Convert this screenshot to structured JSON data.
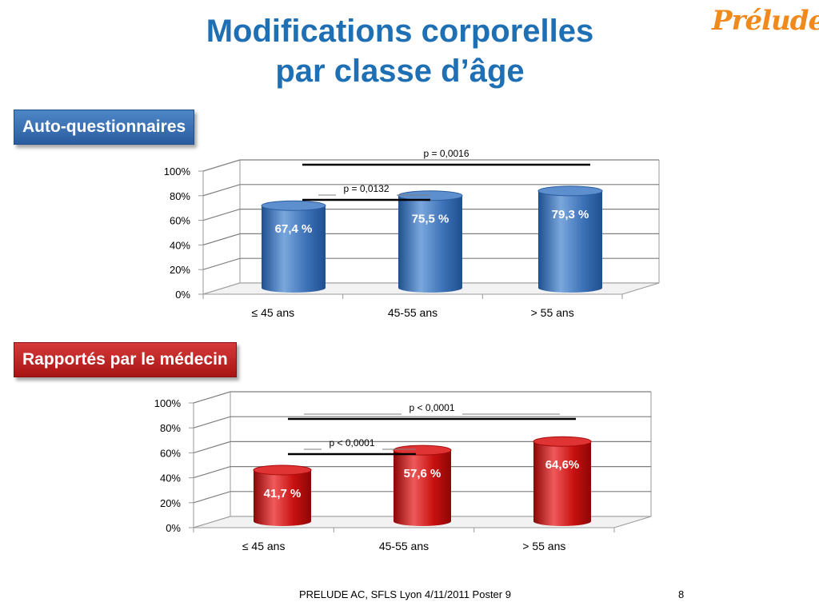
{
  "title_line1": "Modifications corporelles",
  "title_line2": "par classe d’âge",
  "logo_text": "Prélude",
  "footer": "PRELUDE AC, SFLS Lyon 4/11/2011 Poster 9",
  "page_number": "8",
  "colors": {
    "title": "#1f6fb5",
    "logo": "#f08a1c",
    "blue": "#2f6bb3",
    "red": "#c00000"
  },
  "chart_data": [
    {
      "type": "bar",
      "title": "Auto-questionnaires",
      "categories": [
        "≤ 45 ans",
        "45-55 ans",
        "> 55 ans"
      ],
      "values": [
        67.4,
        75.5,
        79.3
      ],
      "data_labels": [
        "67,4 %",
        "75,5 %",
        "79,3 %"
      ],
      "yticks": [
        "0%",
        "20%",
        "40%",
        "60%",
        "80%",
        "100%"
      ],
      "ylim": [
        0,
        100
      ],
      "grid": true,
      "annotations": [
        {
          "text": "p = 0,0132",
          "from": 0,
          "to": 1
        },
        {
          "text": "p = 0,0016",
          "from": 0,
          "to": 2
        }
      ]
    },
    {
      "type": "bar",
      "title": "Rapportés par le médecin",
      "categories": [
        "≤ 45 ans",
        "45-55 ans",
        "> 55 ans"
      ],
      "values": [
        41.7,
        57.6,
        64.6
      ],
      "data_labels": [
        "41,7 %",
        "57,6 %",
        "64,6%"
      ],
      "yticks": [
        "0%",
        "20%",
        "40%",
        "60%",
        "80%",
        "100%"
      ],
      "ylim": [
        0,
        100
      ],
      "grid": true,
      "annotations": [
        {
          "text": "p < 0,0001",
          "from": 0,
          "to": 1
        },
        {
          "text": "p < 0,0001",
          "from": 0,
          "to": 2
        }
      ]
    }
  ]
}
